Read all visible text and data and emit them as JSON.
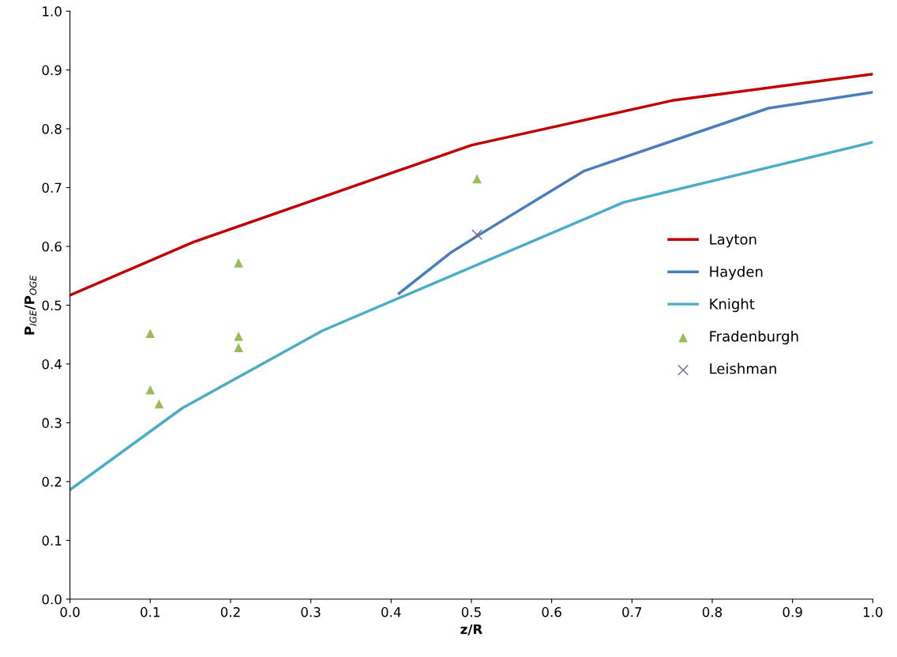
{
  "chart_data": {
    "type": "line",
    "xlabel": "z/R",
    "ylabel": "P$_{IGE}$/P$_{OGE}$",
    "xlim": [
      0,
      1
    ],
    "ylim": [
      0,
      1
    ],
    "xticks": [
      {
        "value": 0,
        "label": "0.0"
      },
      0.1,
      0.2,
      0.3,
      0.4,
      0.5,
      0.6,
      0.7,
      0.8,
      0.9,
      {
        "value": 1,
        "label": "1.0"
      }
    ],
    "yticks": [
      {
        "value": 0,
        "label": "0.0"
      },
      0.1,
      0.2,
      0.3,
      0.4,
      0.5,
      0.6,
      0.7,
      0.8,
      0.9,
      {
        "value": 1,
        "label": "1.0"
      }
    ],
    "grid": false,
    "legend": "right",
    "series": [
      {
        "name": "Layton",
        "color": "#c00000",
        "marker": "none",
        "x": [
          0,
          0.153,
          0.5,
          0.75,
          1.0
        ],
        "values": [
          0.517,
          0.607,
          0.772,
          0.848,
          0.893
        ]
      },
      {
        "name": "Hayden",
        "color": "#4a7ebb",
        "marker": "none",
        "x": [
          0.41,
          0.475,
          0.51,
          0.64,
          0.87,
          1.0
        ],
        "values": [
          0.52,
          0.59,
          0.62,
          0.728,
          0.835,
          0.862
        ]
      },
      {
        "name": "Knight",
        "color": "#4bacc6",
        "marker": "none",
        "x": [
          0,
          0.14,
          0.315,
          0.69,
          1.0
        ],
        "values": [
          0.186,
          0.325,
          0.457,
          0.675,
          0.777
        ]
      },
      {
        "name": "Fradenburgh",
        "type": "scatter",
        "color": "#9bbb59",
        "marker": "triangle",
        "x": [
          0.1,
          0.1,
          0.111,
          0.21,
          0.21,
          0.21,
          0.507
        ],
        "values": [
          0.452,
          0.356,
          0.332,
          0.572,
          0.447,
          0.428,
          0.715
        ]
      },
      {
        "name": "Leishman",
        "type": "scatter",
        "color": "#7f62a0",
        "marker": "cross",
        "x": [
          0.507
        ],
        "values": [
          0.62
        ]
      }
    ]
  }
}
